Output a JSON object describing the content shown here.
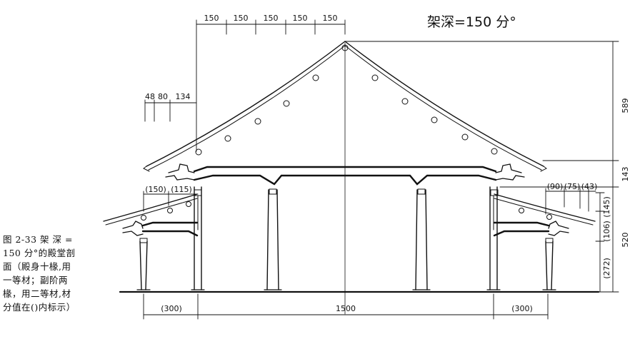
{
  "title": "架深=150 分°",
  "caption": {
    "lines": [
      "图 2-33  架 深 =",
      "150 分°的殿堂剖",
      "面（殿身十椽,用",
      "一等材；副阶两",
      "椽，用二等材,材",
      "分值在()内标示）"
    ]
  },
  "dimensions": {
    "top_spans": [
      "150",
      "150",
      "150",
      "150",
      "150"
    ],
    "eave_left": [
      "48",
      "80",
      "134"
    ],
    "left_aisle": [
      "(150)",
      "(115)"
    ],
    "right_aisle": [
      "(90)",
      "(75)",
      "(43)"
    ],
    "right_vertical": [
      "589",
      "143",
      "520"
    ],
    "right_vertical_paren": [
      "(145)",
      "(106)",
      "(272)"
    ],
    "bottom_spans": [
      "(300)",
      "1500",
      "(300)"
    ]
  }
}
